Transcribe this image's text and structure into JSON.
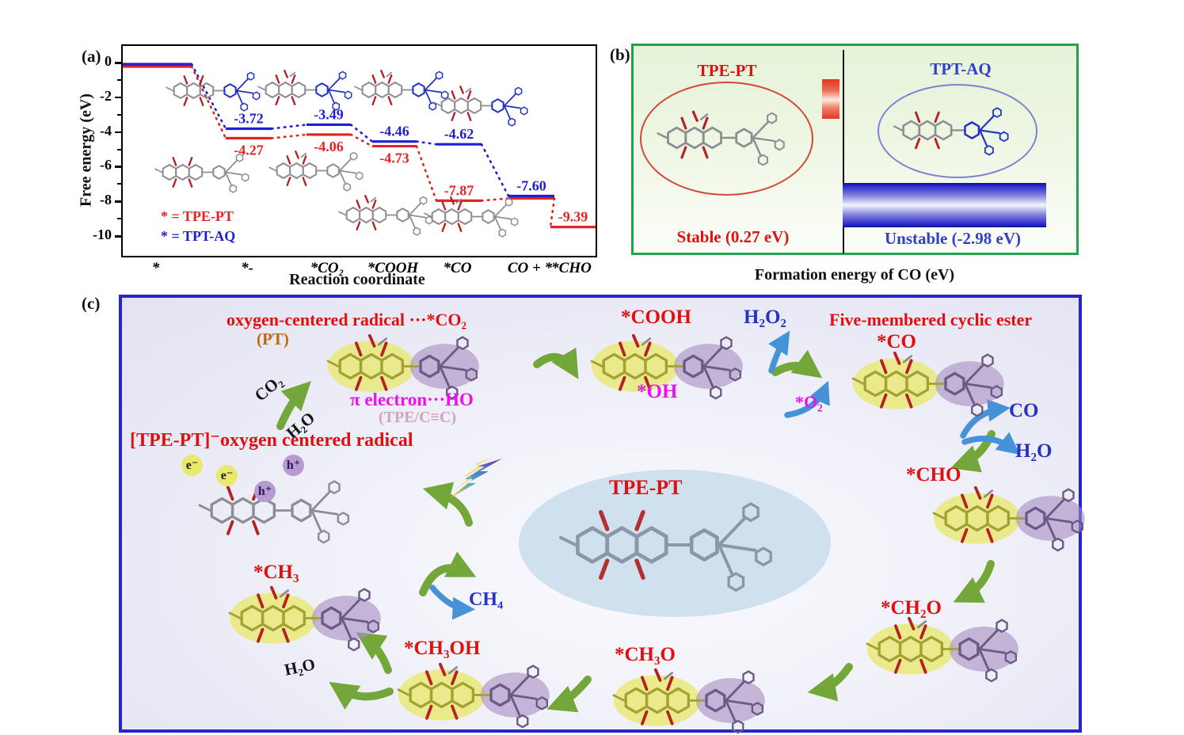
{
  "panel_a": {
    "tag": "(a)",
    "y_axis_label": "Free energy (eV)",
    "x_axis_label": "Reaction coordinate",
    "legend": [
      {
        "label": "* = TPE-PT",
        "color": "#e01010"
      },
      {
        "label": "* = TPT-AQ",
        "color": "#1e1ed2"
      }
    ]
  },
  "chart_data": {
    "type": "line",
    "subtype": "energy-level-diagram",
    "title": "",
    "xlabel": "Reaction coordinate",
    "ylabel": "Free energy (eV)",
    "categories": [
      "*",
      "*-",
      "*CO₂",
      "*COOH",
      "*CO",
      "CO + *",
      "*CHO"
    ],
    "ylim": [
      -11,
      1
    ],
    "yticks": [
      0,
      -2,
      -4,
      -6,
      -8,
      -10
    ],
    "grid": false,
    "legend_position": "lower left",
    "series": [
      {
        "name": "TPE-PT",
        "color": "#e32222",
        "values": [
          0,
          -4.27,
          -4.06,
          -4.73,
          -7.87,
          -7.6,
          -9.39
        ],
        "value_labels": [
          "",
          "-4.27",
          "-4.06",
          "-4.73",
          "-7.87",
          "",
          "-9.39"
        ]
      },
      {
        "name": "TPT-AQ",
        "color": "#1e1ed2",
        "values": [
          0,
          -3.72,
          -3.49,
          -4.46,
          -4.62,
          -7.6,
          null
        ],
        "value_labels": [
          "",
          "-3.72",
          "-3.49",
          "-4.46",
          "-4.62",
          "-7.60",
          ""
        ]
      }
    ]
  },
  "panel_b": {
    "tag": "(b)",
    "left": {
      "title": "TPE-PT",
      "status": "Stable (0.27 eV)",
      "color": "#e01010"
    },
    "right": {
      "title": "TPT-AQ",
      "status": "Unstable (-2.98 eV)",
      "color": "#3040c4"
    },
    "caption": "Formation energy of CO (eV)",
    "border_color": "#1fa24a"
  },
  "panel_c": {
    "tag": "(c)",
    "labels": {
      "radical_co2": "oxygen-centered radical ···*CO₂",
      "pt": "(PT)",
      "pi_electron": "π electron···HO",
      "tpe_cc": "(TPE/C≡C)",
      "co2_in": "CO₂",
      "h2o_in": "H₂O",
      "tpe_pt_radical": "[TPE-PT]⁻oxygen centered radical",
      "e_minus": "e⁻",
      "h_plus": "h⁺",
      "cooh": "*COOH",
      "oh": "*OH",
      "h2o2": "H₂O₂",
      "o2": "*O₂",
      "five_membered_ester": "Five-membered cyclic ester",
      "co_adsorbed": "*CO",
      "co_gas": "CO",
      "h2o_gas": "H₂O",
      "cho": "*CHO",
      "tpe_pt_center": "TPE-PT",
      "ch2o": "*CH₂O",
      "ch3o": "*CH₃O",
      "ch3oh": "*CH₃OH",
      "ch3": "*CH₃",
      "ch4": "CH₄",
      "h2o_out": "H₂O"
    },
    "colors": {
      "red_label": "#e01010",
      "magenta_label": "#ee10ee",
      "blue_label": "#2433c4",
      "orange_label": "#c06a14",
      "mauve_label": "#cfa3bb",
      "border": "#2525c8",
      "green_arrow": "#74a73a",
      "blue_arrow": "#4593d6"
    }
  }
}
